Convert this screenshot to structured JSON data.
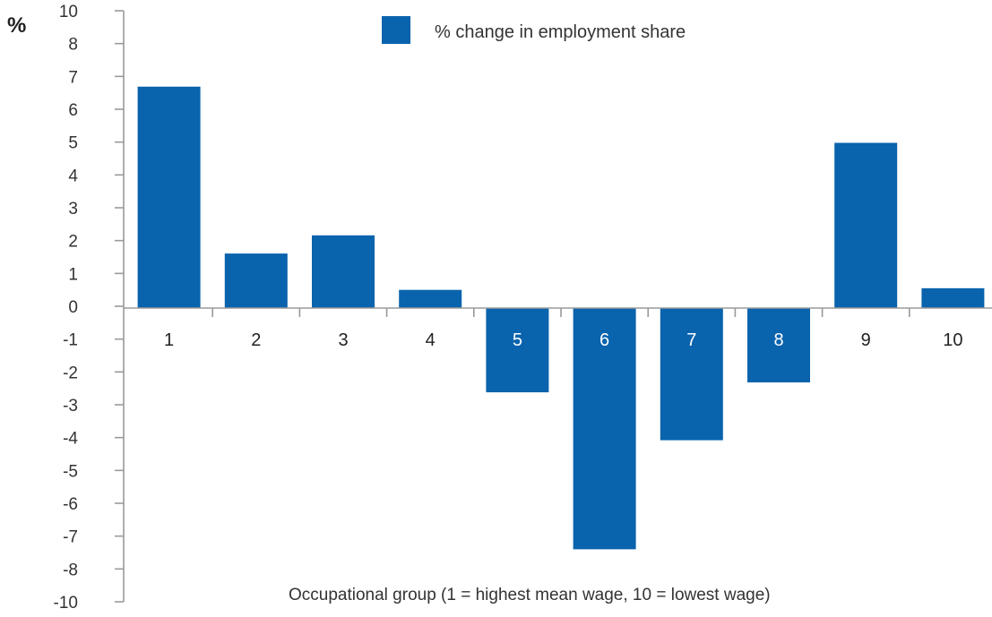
{
  "chart_data": {
    "type": "bar",
    "ylabel": "%",
    "xlabel": "Occupational group (1 = highest mean wage, 10 = lowest wage)",
    "yticks": [
      "10",
      "8",
      "7",
      "6",
      "5",
      "4",
      "3",
      "2",
      "1",
      "0",
      "-1",
      "-2",
      "-3",
      "-4",
      "-5",
      "-6",
      "-7",
      "-8",
      "-10"
    ],
    "categories": [
      "1",
      "2",
      "3",
      "4",
      "5",
      "6",
      "7",
      "8",
      "9",
      "10"
    ],
    "series": [
      {
        "name": "% change in employment share",
        "values": [
          6.7,
          1.65,
          2.2,
          0.55,
          -2.55,
          -7.3,
          -4.0,
          -2.25,
          5.0,
          0.6
        ]
      }
    ],
    "bar_color": "#0a63ad",
    "axis_color": "#9a9a9a",
    "legend_position": "top-center",
    "grid": false
  }
}
